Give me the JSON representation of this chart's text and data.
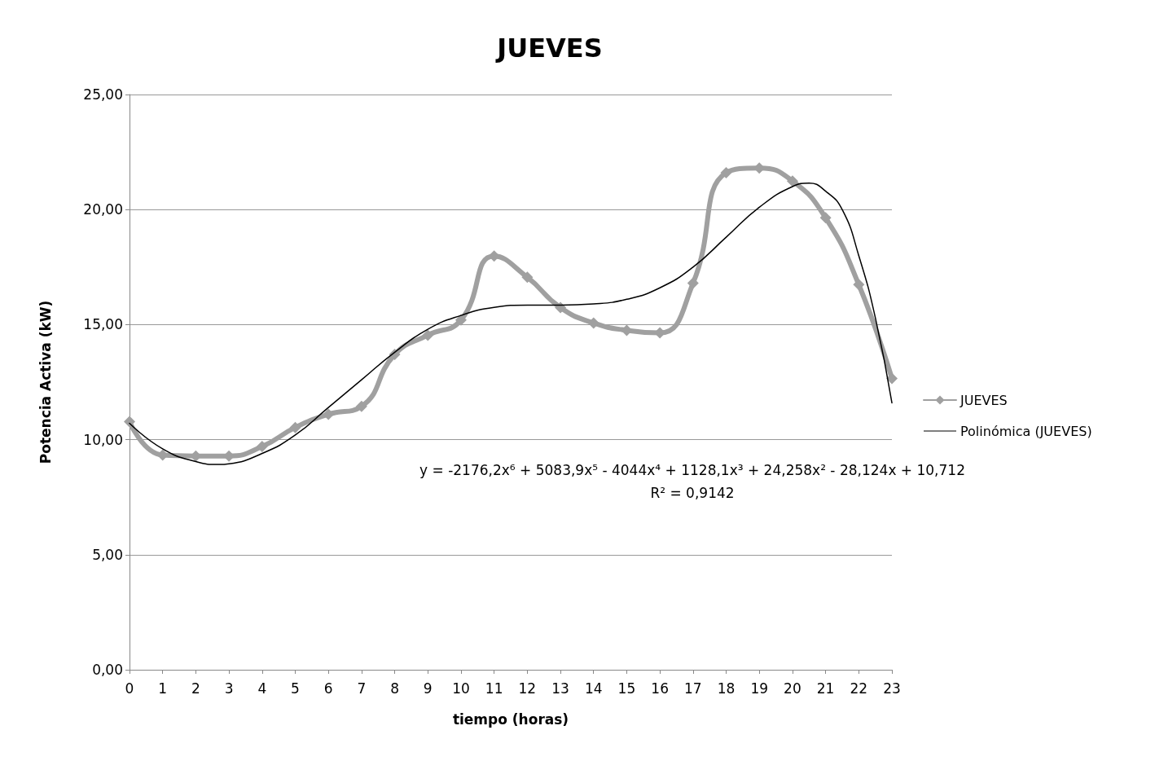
{
  "chart_data": {
    "type": "line",
    "title": "JUEVES",
    "xlabel": "tiempo (horas)",
    "ylabel": "Potencia Activa (kW)",
    "x": [
      0,
      1,
      2,
      3,
      4,
      5,
      6,
      7,
      8,
      9,
      10,
      11,
      12,
      13,
      14,
      15,
      16,
      17,
      18,
      19,
      20,
      21,
      22,
      23
    ],
    "series": [
      {
        "name": "JUEVES",
        "color": "#a0a0a0",
        "marker": "diamond",
        "values": [
          10.78,
          9.33,
          9.29,
          9.29,
          9.7,
          10.53,
          11.1,
          11.45,
          13.7,
          14.54,
          15.2,
          17.98,
          17.06,
          15.74,
          15.07,
          14.75,
          14.64,
          16.8,
          21.6,
          21.8,
          21.24,
          19.64,
          16.74,
          12.66
        ]
      },
      {
        "name": "Polinómica (JUEVES)",
        "color": "#000000",
        "marker": "none",
        "x": [
          0,
          1,
          2,
          2.7,
          3,
          4,
          5,
          6,
          7,
          8,
          9,
          10,
          11,
          12,
          13,
          14,
          15,
          16,
          17,
          18,
          19,
          20,
          20.5,
          21,
          21.5,
          22,
          22.5,
          23
        ],
        "values": [
          10.71,
          9.6,
          9.05,
          8.92,
          8.95,
          9.4,
          10.2,
          11.4,
          12.6,
          13.8,
          14.8,
          15.4,
          15.75,
          15.85,
          15.85,
          15.9,
          16.1,
          16.6,
          17.5,
          18.8,
          20.1,
          21.0,
          21.15,
          20.8,
          20.0,
          18.0,
          15.3,
          11.6
        ]
      }
    ],
    "xlim": [
      0,
      23
    ],
    "xticks": [
      0,
      1,
      2,
      3,
      4,
      5,
      6,
      7,
      8,
      9,
      10,
      11,
      12,
      13,
      14,
      15,
      16,
      17,
      18,
      19,
      20,
      21,
      22,
      23
    ],
    "ylim": [
      0,
      25
    ],
    "yticks": [
      {
        "value": 0,
        "label": "0,00"
      },
      {
        "value": 5,
        "label": "5,00"
      },
      {
        "value": 10,
        "label": "10,00"
      },
      {
        "value": 15,
        "label": "15,00"
      },
      {
        "value": 20,
        "label": "20,00"
      },
      {
        "value": 25,
        "label": "25,00"
      }
    ],
    "grid": "y",
    "legend": "right",
    "line_style": "solid",
    "annotations": [
      "y = -2176,2x⁶ + 5083,9x⁵ - 4044x⁴ + 1128,1x³ + 24,258x² - 28,124x + 10,712",
      "R² = 0,9142"
    ]
  }
}
